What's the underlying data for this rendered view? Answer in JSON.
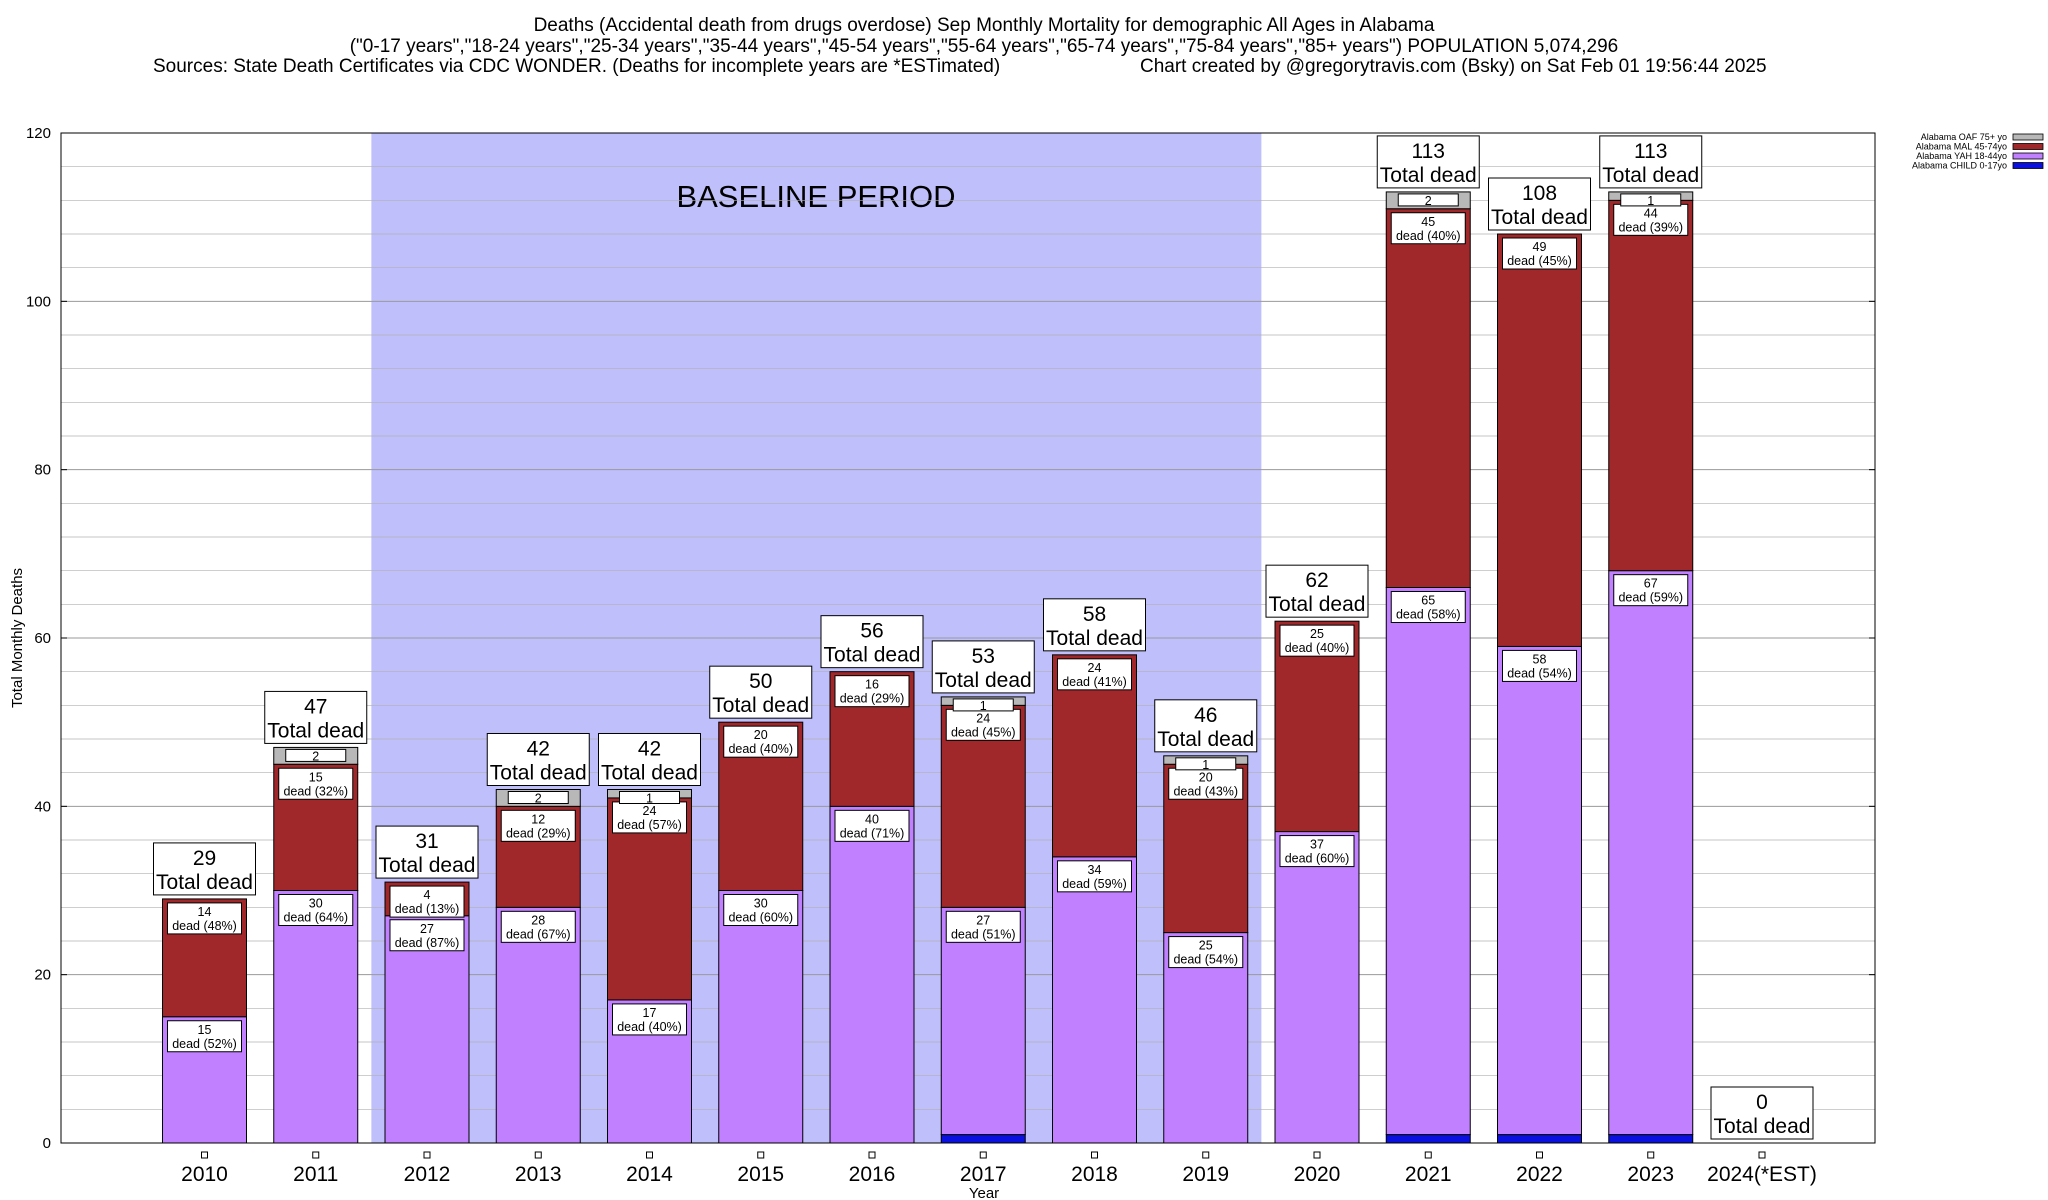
{
  "header": {
    "line1": "Deaths (Accidental death from drugs overdose) Sep Monthly Mortality for demographic All Ages in Alabama",
    "line2": "(\"0-17 years\",\"18-24 years\",\"25-34 years\",\"35-44 years\",\"45-54 years\",\"55-64 years\",\"65-74 years\",\"75-84 years\",\"85+ years\") POPULATION 5,074,296",
    "line3_left": "Sources: State Death Certificates via CDC WONDER. (Deaths for incomplete years are *ESTimated)",
    "line3_right": "Chart created by @gregorytravis.com (Bsky) on Sat Feb 01 19:56:44 2025"
  },
  "colors": {
    "child": "#0a10e0",
    "yah": "#c080ff",
    "mal": "#a0282a",
    "oaf": "#b8b8b8",
    "baseline": "#bfbffc",
    "grid": "#b0b0b0"
  },
  "chart_data": {
    "type": "bar",
    "stacked": true,
    "xlabel": "Year",
    "ylabel": "Total Monthly Deaths",
    "ylim": [
      0,
      120
    ],
    "yticks": [
      0,
      20,
      40,
      60,
      80,
      100,
      120
    ],
    "grid": true,
    "legend_position": "top-right",
    "baseline_period": {
      "label": "BASELINE PERIOD",
      "from": "2012",
      "to": "2019"
    },
    "categories": [
      "2010",
      "2011",
      "2012",
      "2013",
      "2014",
      "2015",
      "2016",
      "2017",
      "2018",
      "2019",
      "2020",
      "2021",
      "2022",
      "2023",
      "2024(*EST)"
    ],
    "series": [
      {
        "name": "Alabama CHILD 0-17yo",
        "key": "child",
        "values": [
          0,
          0,
          0,
          0,
          0,
          0,
          0,
          1,
          0,
          0,
          0,
          1,
          1,
          1,
          0
        ]
      },
      {
        "name": "Alabama YAH 18-44yo",
        "key": "yah",
        "values": [
          15,
          30,
          27,
          28,
          17,
          30,
          40,
          27,
          34,
          25,
          37,
          65,
          58,
          67,
          0
        ]
      },
      {
        "name": "Alabama MAL 45-74yo",
        "key": "mal",
        "values": [
          14,
          15,
          4,
          12,
          24,
          20,
          16,
          24,
          24,
          20,
          25,
          45,
          49,
          44,
          0
        ]
      },
      {
        "name": "Alabama OAF 75+ yo",
        "key": "oaf",
        "values": [
          0,
          2,
          0,
          2,
          1,
          0,
          0,
          1,
          0,
          1,
          0,
          2,
          0,
          1,
          0
        ]
      }
    ],
    "totals": [
      29,
      47,
      31,
      42,
      42,
      50,
      56,
      53,
      58,
      46,
      62,
      113,
      108,
      113,
      0
    ],
    "total_label": "Total dead",
    "segment_labels": {
      "yah": [
        [
          "15",
          "dead (52%)"
        ],
        [
          "30",
          "dead (64%)"
        ],
        [
          "27",
          "dead (87%)"
        ],
        [
          "28",
          "dead (67%)"
        ],
        [
          "17",
          "dead (40%)"
        ],
        [
          "30",
          "dead (60%)"
        ],
        [
          "40",
          "dead (71%)"
        ],
        [
          "27",
          "dead (51%)"
        ],
        [
          "34",
          "dead (59%)"
        ],
        [
          "25",
          "dead (54%)"
        ],
        [
          "37",
          "dead (60%)"
        ],
        [
          "65",
          "dead (58%)"
        ],
        [
          "58",
          "dead (54%)"
        ],
        [
          "67",
          "dead (59%)"
        ],
        null
      ],
      "mal": [
        [
          "14",
          "dead (48%)"
        ],
        [
          "15",
          "dead (32%)"
        ],
        [
          "4",
          "dead (13%)"
        ],
        [
          "12",
          "dead (29%)"
        ],
        [
          "24",
          "dead (57%)"
        ],
        [
          "20",
          "dead (40%)"
        ],
        [
          "16",
          "dead (29%)"
        ],
        [
          "24",
          "dead (45%)"
        ],
        [
          "24",
          "dead (41%)"
        ],
        [
          "20",
          "dead (43%)"
        ],
        [
          "25",
          "dead (40%)"
        ],
        [
          "45",
          "dead (40%)"
        ],
        [
          "49",
          "dead (45%)"
        ],
        [
          "44",
          "dead (39%)"
        ],
        null
      ],
      "oaf": [
        null,
        "2",
        null,
        "2",
        "1",
        null,
        null,
        "1",
        null,
        "1",
        null,
        "2",
        null,
        "1",
        null
      ]
    },
    "legend": [
      "Alabama OAF 75+ yo",
      "Alabama MAL 45-74yo",
      "Alabama YAH 18-44yo",
      "Alabama CHILD 0-17yo"
    ]
  }
}
